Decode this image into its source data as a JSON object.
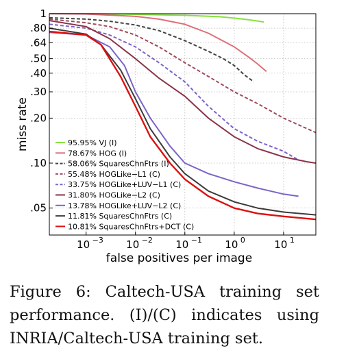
{
  "chart_data": {
    "type": "line",
    "xlabel": "false positives per image",
    "ylabel": "miss rate",
    "x_scale": "log",
    "y_scale": "log",
    "xlim": [
      0.00018,
      45
    ],
    "ylim": [
      0.033,
      1.0
    ],
    "x_ticks": [
      0.001,
      0.01,
      0.1,
      1,
      10
    ],
    "x_tick_labels": [
      "10",
      "10",
      "10",
      "10",
      "10"
    ],
    "x_tick_exponents": [
      "−3",
      "−2",
      "−1",
      "0",
      "1"
    ],
    "y_ticks": [
      1,
      0.8,
      0.64,
      0.5,
      0.4,
      0.3,
      0.2,
      0.1,
      0.05
    ],
    "y_tick_labels": [
      "1",
      ".80",
      ".64",
      ".50",
      ".40",
      ".30",
      ".20",
      ".10",
      ".05"
    ],
    "grid": true,
    "legend_position": "bottom-left",
    "series": [
      {
        "name": "95.95% VJ (I)",
        "color": "#86e23e",
        "dash": "solid",
        "x": [
          0.00018,
          0.001,
          0.01,
          0.1,
          0.5,
          1,
          2,
          4
        ],
        "y": [
          1.0,
          1.0,
          0.99,
          0.975,
          0.955,
          0.935,
          0.91,
          0.88
        ]
      },
      {
        "name": "78.67% HOG (I)",
        "color": "#e06f78",
        "dash": "solid",
        "x": [
          0.00018,
          0.001,
          0.01,
          0.03,
          0.1,
          0.3,
          1,
          2,
          3,
          4.5
        ],
        "y": [
          1.0,
          0.995,
          0.96,
          0.92,
          0.85,
          0.74,
          0.6,
          0.51,
          0.46,
          0.41
        ]
      },
      {
        "name": "58.06% SquaresChnFtrs (I)",
        "color": "#424242",
        "dash": "dash",
        "x": [
          0.00018,
          0.001,
          0.003,
          0.01,
          0.03,
          0.1,
          0.3,
          0.6,
          1,
          1.6,
          2.5
        ],
        "y": [
          0.94,
          0.92,
          0.89,
          0.84,
          0.77,
          0.66,
          0.56,
          0.5,
          0.45,
          0.39,
          0.35
        ]
      },
      {
        "name": "55.48% HOGLike−L1 (C)",
        "color": "#a04a5c",
        "dash": "dash",
        "x": [
          0.00018,
          0.001,
          0.003,
          0.01,
          0.03,
          0.1,
          0.3,
          1,
          3,
          10,
          30,
          45
        ],
        "y": [
          0.92,
          0.87,
          0.82,
          0.72,
          0.6,
          0.47,
          0.38,
          0.3,
          0.25,
          0.2,
          0.17,
          0.16
        ]
      },
      {
        "name": "33.75% HOGLike+LUV−L1 (C)",
        "color": "#7b63c9",
        "dash": "dash",
        "x": [
          0.00018,
          0.001,
          0.003,
          0.01,
          0.03,
          0.1,
          0.3,
          1,
          3,
          10,
          20
        ],
        "y": [
          0.85,
          0.8,
          0.72,
          0.6,
          0.47,
          0.35,
          0.24,
          0.17,
          0.14,
          0.12,
          0.105
        ]
      },
      {
        "name": "31.80% HOGLike−L2 (C)",
        "color": "#8a3348",
        "dash": "solid",
        "x": [
          0.00018,
          0.001,
          0.003,
          0.01,
          0.03,
          0.1,
          0.3,
          1,
          3,
          10,
          30,
          45
        ],
        "y": [
          0.9,
          0.82,
          0.68,
          0.5,
          0.37,
          0.28,
          0.2,
          0.15,
          0.125,
          0.11,
          0.102,
          0.1
        ]
      },
      {
        "name": "13.78% HOGLike+LUV−L2 (C)",
        "color": "#7b63c9",
        "dash": "solid",
        "x": [
          0.00018,
          0.001,
          0.003,
          0.006,
          0.01,
          0.02,
          0.05,
          0.1,
          0.3,
          1,
          3,
          10,
          20
        ],
        "y": [
          0.75,
          0.72,
          0.6,
          0.45,
          0.3,
          0.2,
          0.13,
          0.1,
          0.085,
          0.075,
          0.068,
          0.062,
          0.06
        ]
      },
      {
        "name": "11.81% SquaresChnFtrs (C)",
        "color": "#3c3c3c",
        "dash": "solid",
        "x": [
          0.00018,
          0.001,
          0.002,
          0.005,
          0.01,
          0.02,
          0.05,
          0.1,
          0.3,
          1,
          3,
          10,
          45
        ],
        "y": [
          0.8,
          0.73,
          0.62,
          0.42,
          0.27,
          0.17,
          0.11,
          0.085,
          0.065,
          0.055,
          0.05,
          0.047,
          0.045
        ]
      },
      {
        "name": "10.81% SquaresChnFtrs+DCT (C)",
        "color": "#dd1010",
        "dash": "solid",
        "x": [
          0.00018,
          0.001,
          0.002,
          0.005,
          0.01,
          0.02,
          0.05,
          0.1,
          0.3,
          1,
          3,
          10,
          45
        ],
        "y": [
          0.76,
          0.72,
          0.62,
          0.38,
          0.24,
          0.15,
          0.1,
          0.078,
          0.06,
          0.05,
          0.046,
          0.044,
          0.042
        ]
      }
    ]
  },
  "caption": {
    "text": "Figure 6:  Caltech-USA training set performance. (I)/(C) indicates using INRIA/Caltech-USA training set."
  }
}
